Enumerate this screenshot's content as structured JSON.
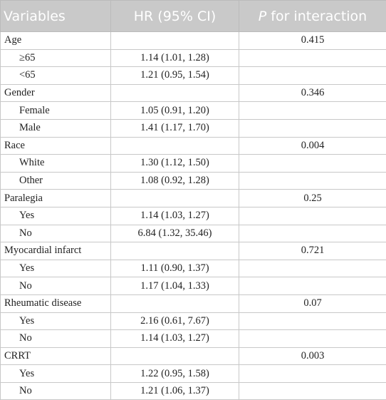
{
  "header": {
    "variables": "Variables",
    "hr": "HR (95% CI)",
    "p_italic": "P",
    "p_rest": "for interaction"
  },
  "groups": [
    {
      "name": "Age",
      "p": "0.415",
      "rows": [
        {
          "label": "≥65",
          "hr": "1.14 (1.01, 1.28)"
        },
        {
          "label": "<65",
          "hr": "1.21 (0.95, 1.54)"
        }
      ]
    },
    {
      "name": "Gender",
      "p": "0.346",
      "rows": [
        {
          "label": "Female",
          "hr": "1.05 (0.91, 1.20)"
        },
        {
          "label": "Male",
          "hr": "1.41 (1.17, 1.70)"
        }
      ]
    },
    {
      "name": "Race",
      "p": "0.004",
      "rows": [
        {
          "label": "White",
          "hr": "1.30 (1.12, 1.50)"
        },
        {
          "label": "Other",
          "hr": "1.08 (0.92, 1.28)"
        }
      ]
    },
    {
      "name": "Paralegia",
      "p": "0.25",
      "rows": [
        {
          "label": "Yes",
          "hr": "1.14 (1.03, 1.27)"
        },
        {
          "label": "No",
          "hr": "6.84 (1.32, 35.46)"
        }
      ]
    },
    {
      "name": "Myocardial infarct",
      "p": "0.721",
      "rows": [
        {
          "label": "Yes",
          "hr": "1.11 (0.90, 1.37)"
        },
        {
          "label": "No",
          "hr": "1.17 (1.04, 1.33)"
        }
      ]
    },
    {
      "name": "Rheumatic disease",
      "p": "0.07",
      "rows": [
        {
          "label": "Yes",
          "hr": "2.16 (0.61, 7.67)"
        },
        {
          "label": "No",
          "hr": "1.14 (1.03, 1.27)"
        }
      ]
    },
    {
      "name": "CRRT",
      "p": "0.003",
      "rows": [
        {
          "label": "Yes",
          "hr": "1.22 (0.95, 1.58)"
        },
        {
          "label": "No",
          "hr": "1.21 (1.06, 1.37)"
        }
      ]
    }
  ]
}
